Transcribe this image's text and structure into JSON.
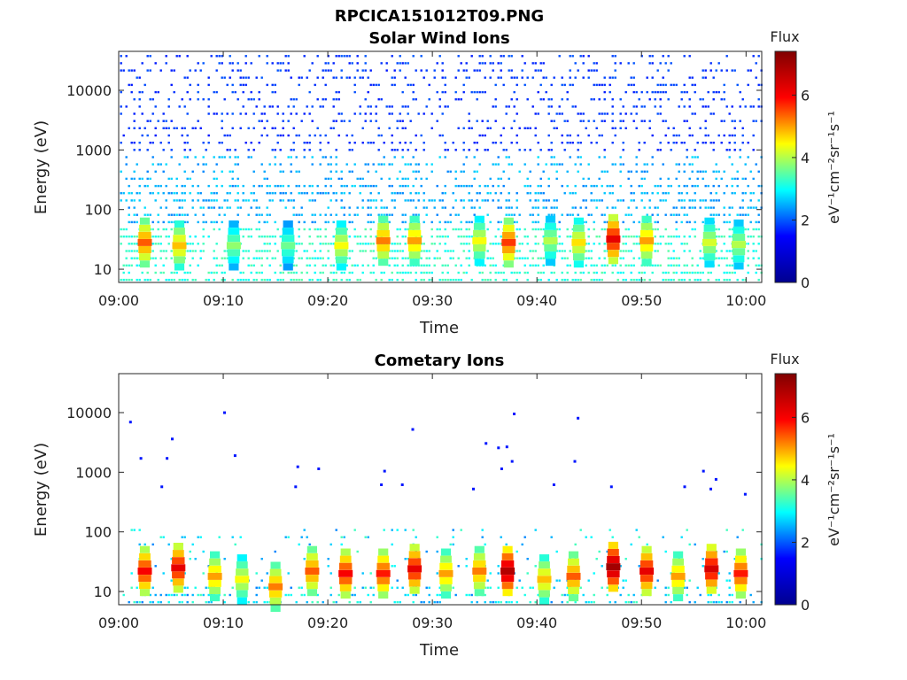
{
  "figure": {
    "title": "RPCICA151012T09.PNG",
    "colormap": [
      "#00008f",
      "#0000ff",
      "#00ffff",
      "#ffff00",
      "#ff0000",
      "#800000"
    ]
  },
  "chart_data": [
    {
      "type": "heatmap",
      "title": "Solar Wind Ions",
      "xlabel": "Time",
      "ylabel": "Energy (eV)",
      "x_ticks": [
        "09:00",
        "09:10",
        "09:20",
        "09:30",
        "09:40",
        "09:50",
        "10:00"
      ],
      "x_tick_minutes": [
        0,
        10,
        20,
        30,
        40,
        50,
        60
      ],
      "xlim_minutes": [
        0,
        61.5
      ],
      "y_ticks": [
        "10",
        "100",
        "1000",
        "10000"
      ],
      "y_tick_values": [
        10,
        100,
        1000,
        10000
      ],
      "ylim": [
        6,
        45000
      ],
      "yscale": "log",
      "colorbar": {
        "title": "Flux",
        "label": "eV⁻¹cm⁻²sr⁻¹s⁻¹",
        "ticks": [
          "0",
          "2",
          "4",
          "6"
        ],
        "tick_values": [
          0,
          2,
          4,
          6
        ],
        "range": [
          0,
          7.4
        ]
      },
      "bursts": [
        {
          "t": 2.5,
          "e": 28,
          "flux": 5.4
        },
        {
          "t": 5.8,
          "e": 25,
          "flux": 4.8
        },
        {
          "t": 11.0,
          "e": 25,
          "flux": 3.8
        },
        {
          "t": 16.2,
          "e": 25,
          "flux": 3.6
        },
        {
          "t": 21.3,
          "e": 25,
          "flux": 4.4
        },
        {
          "t": 25.3,
          "e": 30,
          "flux": 5.2
        },
        {
          "t": 28.3,
          "e": 30,
          "flux": 5.0
        },
        {
          "t": 34.5,
          "e": 30,
          "flux": 4.4
        },
        {
          "t": 37.3,
          "e": 28,
          "flux": 5.6
        },
        {
          "t": 41.3,
          "e": 30,
          "flux": 4.0
        },
        {
          "t": 44.0,
          "e": 28,
          "flux": 4.6
        },
        {
          "t": 47.3,
          "e": 32,
          "flux": 6.2
        },
        {
          "t": 50.5,
          "e": 30,
          "flux": 5.0
        },
        {
          "t": 56.5,
          "e": 28,
          "flux": 4.2
        },
        {
          "t": 59.3,
          "e": 26,
          "flux": 4.0
        }
      ]
    },
    {
      "type": "heatmap",
      "title": "Cometary Ions",
      "xlabel": "Time",
      "ylabel": "Energy (eV)",
      "x_ticks": [
        "09:00",
        "09:10",
        "09:20",
        "09:30",
        "09:40",
        "09:50",
        "10:00"
      ],
      "x_tick_minutes": [
        0,
        10,
        20,
        30,
        40,
        50,
        60
      ],
      "xlim_minutes": [
        0,
        61.5
      ],
      "y_ticks": [
        "10",
        "100",
        "1000",
        "10000"
      ],
      "y_tick_values": [
        10,
        100,
        1000,
        10000
      ],
      "ylim": [
        6,
        45000
      ],
      "yscale": "log",
      "colorbar": {
        "title": "Flux",
        "label": "eV⁻¹cm⁻²sr⁻¹s⁻¹",
        "ticks": [
          "0",
          "2",
          "4",
          "6"
        ],
        "tick_values": [
          0,
          2,
          4,
          6
        ],
        "range": [
          0,
          7.4
        ]
      },
      "bursts": [
        {
          "t": 2.5,
          "e": 22,
          "flux": 6.0
        },
        {
          "t": 5.7,
          "e": 25,
          "flux": 6.2
        },
        {
          "t": 9.2,
          "e": 18,
          "flux": 5.0
        },
        {
          "t": 11.8,
          "e": 16,
          "flux": 4.4
        },
        {
          "t": 15.0,
          "e": 12,
          "flux": 5.2
        },
        {
          "t": 18.5,
          "e": 22,
          "flux": 5.4
        },
        {
          "t": 21.7,
          "e": 20,
          "flux": 6.0
        },
        {
          "t": 25.3,
          "e": 20,
          "flux": 5.8
        },
        {
          "t": 28.3,
          "e": 24,
          "flux": 6.2
        },
        {
          "t": 31.3,
          "e": 20,
          "flux": 5.0
        },
        {
          "t": 34.5,
          "e": 22,
          "flux": 5.2
        },
        {
          "t": 37.2,
          "e": 22,
          "flux": 6.8
        },
        {
          "t": 40.7,
          "e": 16,
          "flux": 4.8
        },
        {
          "t": 43.5,
          "e": 18,
          "flux": 5.4
        },
        {
          "t": 47.3,
          "e": 26,
          "flux": 7.0
        },
        {
          "t": 50.5,
          "e": 22,
          "flux": 6.2
        },
        {
          "t": 53.5,
          "e": 18,
          "flux": 5.0
        },
        {
          "t": 56.7,
          "e": 24,
          "flux": 6.4
        },
        {
          "t": 59.5,
          "e": 20,
          "flux": 5.8
        }
      ],
      "sparse_points": [
        {
          "t": 1.0,
          "e": 7300
        },
        {
          "t": 10.0,
          "e": 10500
        },
        {
          "t": 11.0,
          "e": 2000
        },
        {
          "t": 2.0,
          "e": 1800
        },
        {
          "t": 4.5,
          "e": 1800
        },
        {
          "t": 5.0,
          "e": 3800
        },
        {
          "t": 4.0,
          "e": 600
        },
        {
          "t": 16.8,
          "e": 600
        },
        {
          "t": 19.0,
          "e": 1200
        },
        {
          "t": 17.0,
          "e": 1300
        },
        {
          "t": 28.0,
          "e": 5500
        },
        {
          "t": 35.0,
          "e": 3200
        },
        {
          "t": 36.2,
          "e": 2700
        },
        {
          "t": 37.0,
          "e": 2800
        },
        {
          "t": 37.7,
          "e": 10000
        },
        {
          "t": 36.5,
          "e": 1200
        },
        {
          "t": 37.5,
          "e": 1600
        },
        {
          "t": 43.8,
          "e": 8500
        },
        {
          "t": 43.5,
          "e": 1600
        },
        {
          "t": 54.0,
          "e": 600
        },
        {
          "t": 55.8,
          "e": 1100
        },
        {
          "t": 59.8,
          "e": 450
        },
        {
          "t": 25.3,
          "e": 1100
        },
        {
          "t": 25.0,
          "e": 650
        },
        {
          "t": 27.0,
          "e": 650
        },
        {
          "t": 33.8,
          "e": 550
        },
        {
          "t": 41.5,
          "e": 650
        },
        {
          "t": 47.0,
          "e": 600
        },
        {
          "t": 56.5,
          "e": 550
        },
        {
          "t": 57.0,
          "e": 800
        }
      ]
    }
  ]
}
